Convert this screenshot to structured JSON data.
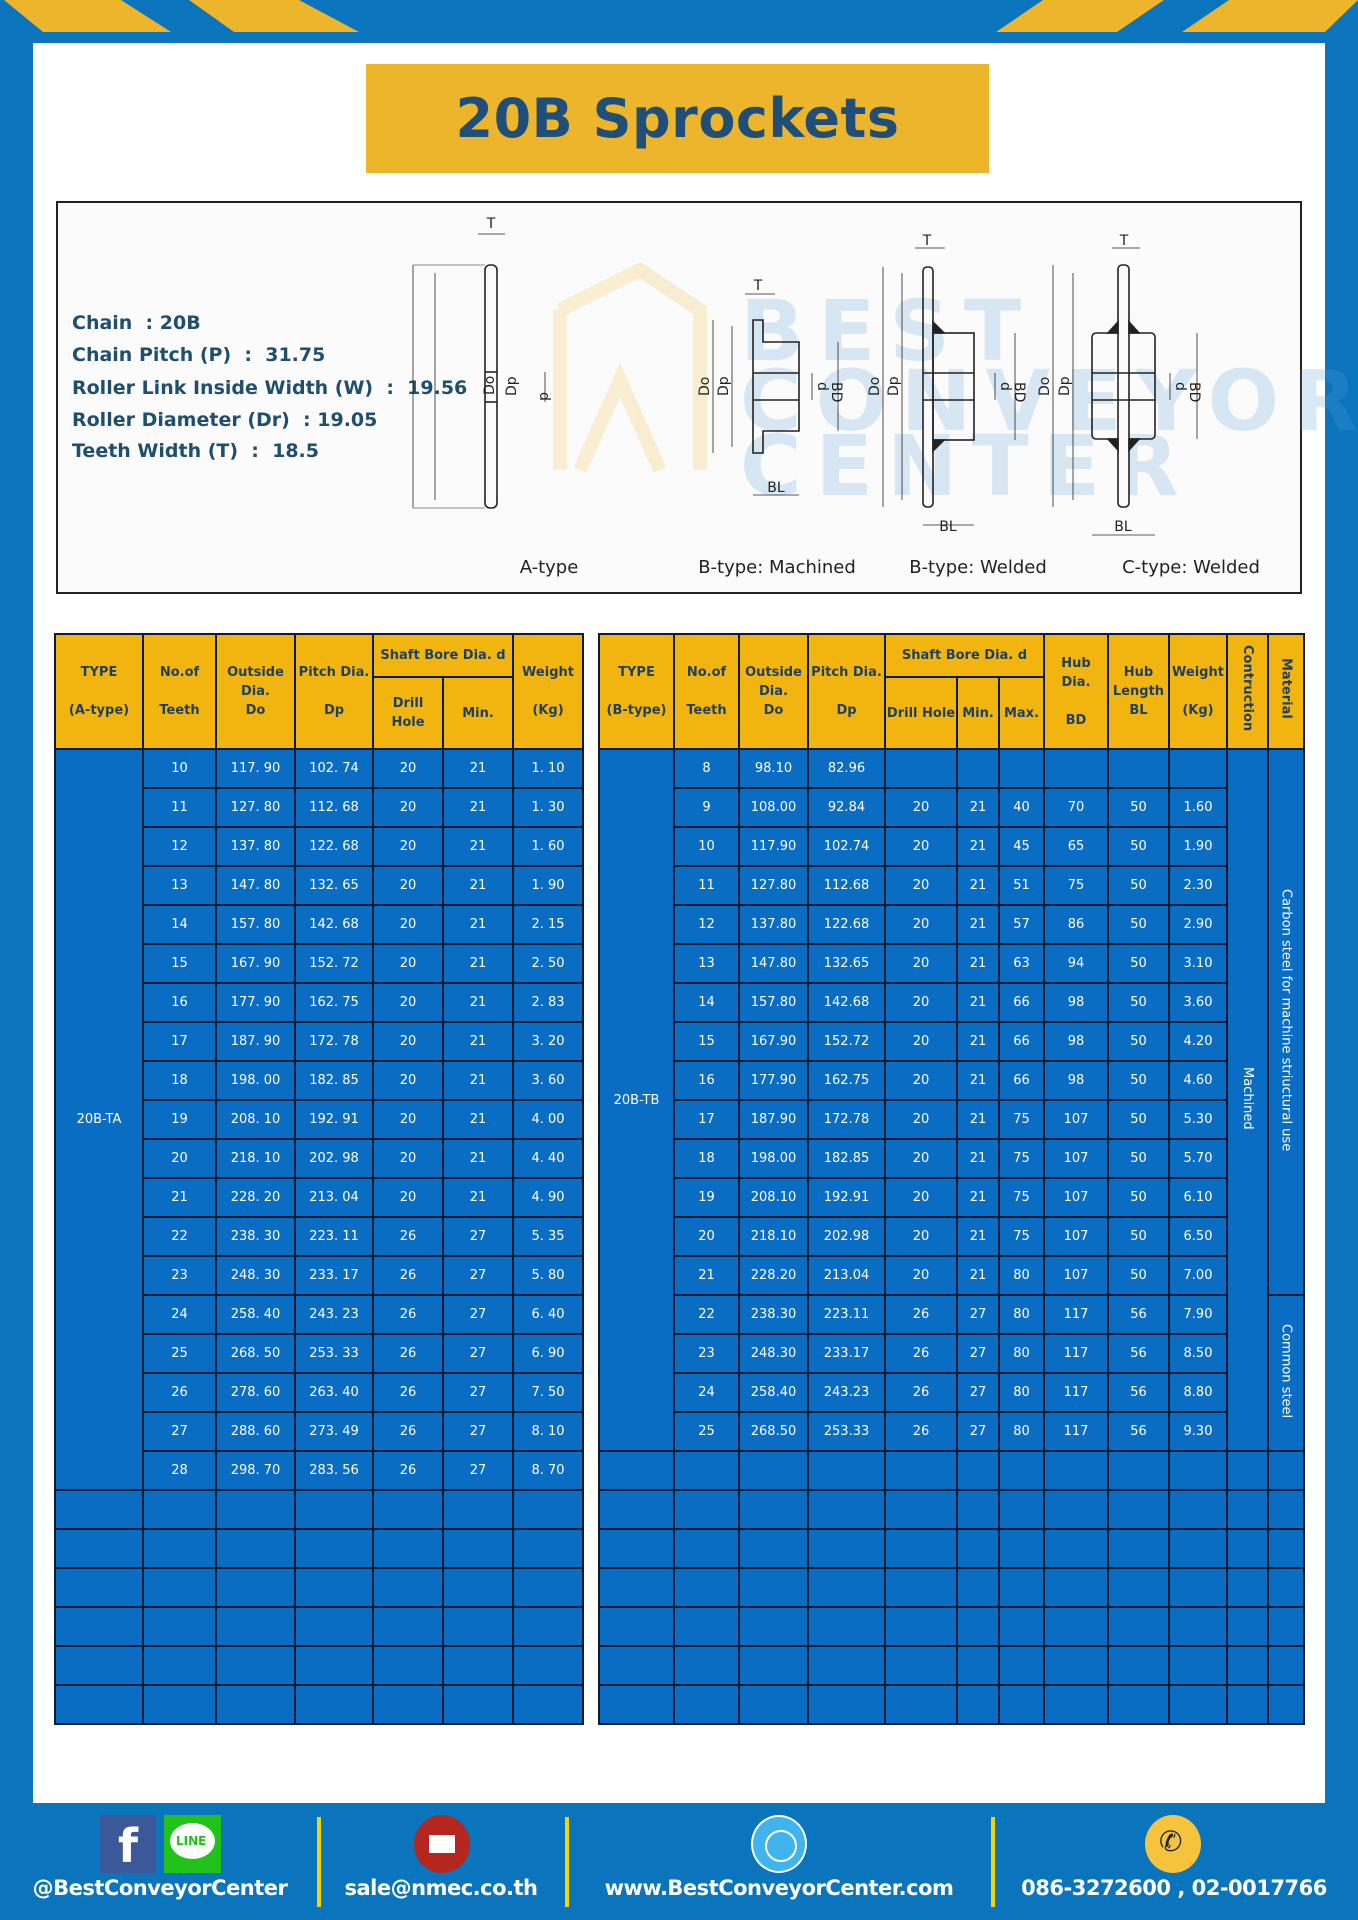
{
  "colors": {
    "brand_blue": "#0a74bd",
    "accent_yellow": "#edb52b",
    "cell_blue": "#0a6dc4",
    "header_yellow": "#f2b50f",
    "title_text": "#1f4e79"
  },
  "title": "20B Sprockets",
  "specs": [
    "Chain  : 20B",
    "Chain Pitch (P)  :  31.75",
    "Roller Link Inside Width (W)  :  19.56",
    "Roller Diameter (Dr)  : 19.05",
    "Teeth Width (T)  :  18.5"
  ],
  "diagram": {
    "watermark": "BEST CONVEYOR CENTER",
    "labels": {
      "t": "T",
      "do": "Do",
      "dp": "Dp",
      "d": "d",
      "bd": "BD",
      "bl": "BL"
    },
    "captions": [
      "A-type",
      "B-type: Machined",
      "B-type: Welded",
      "C-type: Welded"
    ]
  },
  "table_a": {
    "headers": {
      "type": "TYPE",
      "type_sub": "(A-type)",
      "teeth": "No.of",
      "teeth_sub": "Teeth",
      "outside": "Outside",
      "outside_sub": "Dia.",
      "outside_sub2": "Do",
      "pitch": "Pitch Dia.",
      "pitch_sub": "Dp",
      "shaft": "Shaft Bore Dia. d",
      "drill": "Drill Hole",
      "min": "Min.",
      "weight": "Weight",
      "weight_sub": "(Kg)"
    },
    "type_value": "20B-TA",
    "rows": [
      [
        "10",
        "117. 90",
        "102. 74",
        "20",
        "21",
        "1. 10"
      ],
      [
        "11",
        "127. 80",
        "112. 68",
        "20",
        "21",
        "1. 30"
      ],
      [
        "12",
        "137. 80",
        "122. 68",
        "20",
        "21",
        "1. 60"
      ],
      [
        "13",
        "147. 80",
        "132. 65",
        "20",
        "21",
        "1. 90"
      ],
      [
        "14",
        "157. 80",
        "142. 68",
        "20",
        "21",
        "2. 15"
      ],
      [
        "15",
        "167. 90",
        "152. 72",
        "20",
        "21",
        "2. 50"
      ],
      [
        "16",
        "177. 90",
        "162. 75",
        "20",
        "21",
        "2. 83"
      ],
      [
        "17",
        "187. 90",
        "172. 78",
        "20",
        "21",
        "3. 20"
      ],
      [
        "18",
        "198. 00",
        "182. 85",
        "20",
        "21",
        "3. 60"
      ],
      [
        "19",
        "208. 10",
        "192. 91",
        "20",
        "21",
        "4. 00"
      ],
      [
        "20",
        "218. 10",
        "202. 98",
        "20",
        "21",
        "4. 40"
      ],
      [
        "21",
        "228. 20",
        "213. 04",
        "20",
        "21",
        "4. 90"
      ],
      [
        "22",
        "238. 30",
        "223. 11",
        "26",
        "27",
        "5. 35"
      ],
      [
        "23",
        "248. 30",
        "233. 17",
        "26",
        "27",
        "5. 80"
      ],
      [
        "24",
        "258. 40",
        "243. 23",
        "26",
        "27",
        "6. 40"
      ],
      [
        "25",
        "268. 50",
        "253. 33",
        "26",
        "27",
        "6. 90"
      ],
      [
        "26",
        "278. 60",
        "263. 40",
        "26",
        "27",
        "7. 50"
      ],
      [
        "27",
        "288. 60",
        "273. 49",
        "26",
        "27",
        "8. 10"
      ],
      [
        "28",
        "298. 70",
        "283. 56",
        "26",
        "27",
        "8. 70"
      ]
    ]
  },
  "table_b": {
    "headers": {
      "type": "TYPE",
      "type_sub": "(B-type)",
      "teeth": "No.of",
      "teeth_sub": "Teeth",
      "outside": "Outside",
      "outside_sub": "Dia.",
      "outside_sub2": "Do",
      "pitch": "Pitch Dia.",
      "pitch_sub": "Dp",
      "shaft": "Shaft Bore Dia. d",
      "drill": "Drill Hole",
      "min": "Min.",
      "max": "Max.",
      "hub_dia": "Hub Dia.",
      "hub_dia_sub": "BD",
      "hub_len": "Hub",
      "hub_len_sub": "Length",
      "hub_len_sub2": "BL",
      "weight": "Weight",
      "weight_sub": "(Kg)",
      "construction": "Contruction",
      "material": "Material"
    },
    "type_value": "20B-TB",
    "construction_value": "Machined",
    "material_carbon": "Carbon steel for machine striuctural use",
    "material_common": "Common steel",
    "rows": [
      [
        "8",
        "98.10",
        "82.96",
        "",
        "",
        "",
        "",
        "",
        ""
      ],
      [
        "9",
        "108.00",
        "92.84",
        "20",
        "21",
        "40",
        "70",
        "50",
        "1.60"
      ],
      [
        "10",
        "117.90",
        "102.74",
        "20",
        "21",
        "45",
        "65",
        "50",
        "1.90"
      ],
      [
        "11",
        "127.80",
        "112.68",
        "20",
        "21",
        "51",
        "75",
        "50",
        "2.30"
      ],
      [
        "12",
        "137.80",
        "122.68",
        "20",
        "21",
        "57",
        "86",
        "50",
        "2.90"
      ],
      [
        "13",
        "147.80",
        "132.65",
        "20",
        "21",
        "63",
        "94",
        "50",
        "3.10"
      ],
      [
        "14",
        "157.80",
        "142.68",
        "20",
        "21",
        "66",
        "98",
        "50",
        "3.60"
      ],
      [
        "15",
        "167.90",
        "152.72",
        "20",
        "21",
        "66",
        "98",
        "50",
        "4.20"
      ],
      [
        "16",
        "177.90",
        "162.75",
        "20",
        "21",
        "66",
        "98",
        "50",
        "4.60"
      ],
      [
        "17",
        "187.90",
        "172.78",
        "20",
        "21",
        "75",
        "107",
        "50",
        "5.30"
      ],
      [
        "18",
        "198.00",
        "182.85",
        "20",
        "21",
        "75",
        "107",
        "50",
        "5.70"
      ],
      [
        "19",
        "208.10",
        "192.91",
        "20",
        "21",
        "75",
        "107",
        "50",
        "6.10"
      ],
      [
        "20",
        "218.10",
        "202.98",
        "20",
        "21",
        "75",
        "107",
        "50",
        "6.50"
      ],
      [
        "21",
        "228.20",
        "213.04",
        "20",
        "21",
        "80",
        "107",
        "50",
        "7.00"
      ],
      [
        "22",
        "238.30",
        "223.11",
        "26",
        "27",
        "80",
        "117",
        "56",
        "7.90"
      ],
      [
        "23",
        "248.30",
        "233.17",
        "26",
        "27",
        "80",
        "117",
        "56",
        "8.50"
      ],
      [
        "24",
        "258.40",
        "243.23",
        "26",
        "27",
        "80",
        "117",
        "56",
        "8.80"
      ],
      [
        "25",
        "268.50",
        "253.33",
        "26",
        "27",
        "80",
        "117",
        "56",
        "9.30"
      ]
    ]
  },
  "footer": {
    "social": "@BestConveyorCenter",
    "email": "sale@nmec.co.th",
    "website": "www.BestConveyorCenter.com",
    "phone": "086-3272600 , 02-0017766",
    "line_badge": "LINE",
    "fb_badge": "f"
  }
}
